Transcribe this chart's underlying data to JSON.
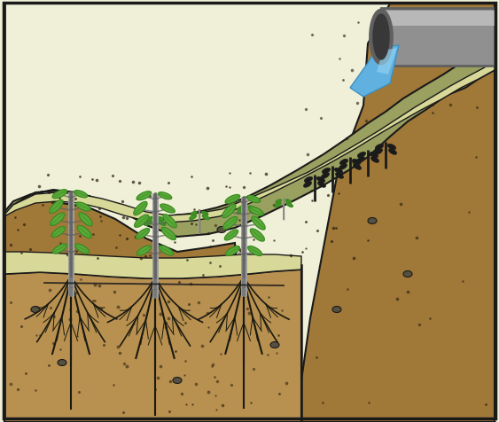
{
  "bg_color": "#f0f0d8",
  "border_color": "#1a1a1a",
  "brown_dark": "#8B6830",
  "brown_mid": "#a07838",
  "brown_light": "#b89050",
  "gully_dark": "#9aA060",
  "gully_light": "#c8c888",
  "gully_lighter": "#d8d898",
  "pipe_gray_light": "#b8b8b8",
  "pipe_gray_mid": "#909090",
  "pipe_gray_dark": "#606060",
  "pipe_inner": "#383838",
  "water_blue": "#60b0e0",
  "water_light": "#90d0f0",
  "leaf_green": "#5aaa3a",
  "leaf_dark_green": "#3a8a20",
  "stake_light": "#a0a0a0",
  "stake_dark": "#606060",
  "root_color": "#1a1a10",
  "line_color": "#1a1a1a",
  "dot_color": "#2a2010",
  "pebble_color": "#555040"
}
